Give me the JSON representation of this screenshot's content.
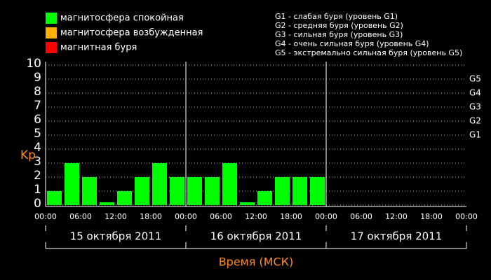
{
  "chart_data": {
    "type": "bar",
    "legend": [
      {
        "label": "магнитосфера спокойная",
        "color": "#00ff00"
      },
      {
        "label": "магнитосфера возбужденная",
        "color": "#ffb000"
      },
      {
        "label": "магнитная буря",
        "color": "#ff0000"
      }
    ],
    "notes": [
      "G1 - слабая буря (уровень G1)",
      "G2 - средняя буря (уровень G2)",
      "G3 - сильная буря (уровень G3)",
      "G4 - очень сильная буря (уровень G4)",
      "G5 - экстремально сильная буря (уровень G5)"
    ],
    "y_label": "Kp",
    "x_label": "Время (МСК)",
    "time_labels": [
      "00:00",
      "06:00",
      "12:00",
      "18:00",
      "00:00",
      "06:00",
      "12:00",
      "18:00",
      "00:00",
      "06:00",
      "12:00",
      "18:00",
      "00:00"
    ],
    "days": [
      "15 октября 2011",
      "16 октября 2011",
      "17 октября 2011"
    ],
    "categories": [
      null,
      null,
      null,
      null,
      null,
      null,
      null,
      null,
      null,
      null,
      null,
      null,
      null,
      null,
      null,
      null,
      null,
      null,
      null,
      null,
      null,
      null,
      null,
      null
    ],
    "series": [
      {
        "name": "Kp",
        "color": "#00ff00",
        "values": [
          1,
          3,
          2,
          0.2,
          1,
          2,
          3,
          2,
          2,
          2,
          3,
          0.2,
          1,
          2,
          2,
          2,
          null,
          null,
          null,
          null,
          null,
          null,
          null,
          null
        ]
      }
    ],
    "ylim": [
      0,
      10
    ],
    "yticks": [
      0,
      1,
      2,
      3,
      4,
      5,
      6,
      7,
      8,
      9,
      10
    ],
    "y2lim": [
      0,
      10
    ],
    "y2ticks": [
      {
        "value": 5,
        "label": "G1"
      },
      {
        "value": 6,
        "label": "G2"
      },
      {
        "value": 7,
        "label": "G3"
      },
      {
        "value": 8,
        "label": "G4"
      },
      {
        "value": 9,
        "label": "G5"
      }
    ],
    "grid": true
  }
}
